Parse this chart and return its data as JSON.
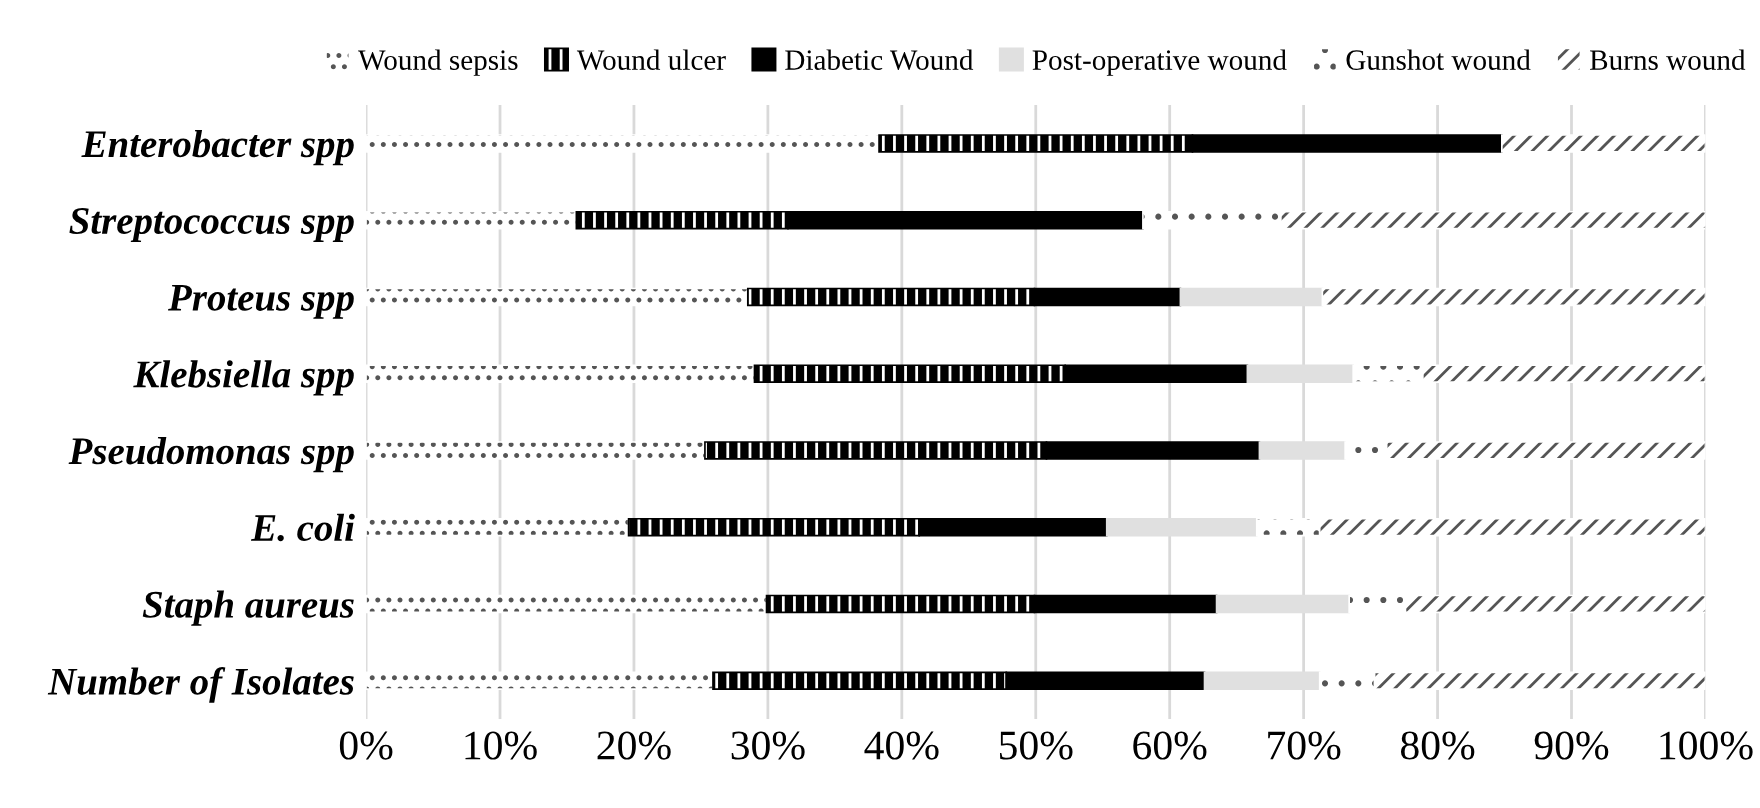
{
  "chart_data": {
    "type": "bar",
    "orientation": "horizontal",
    "stacked": true,
    "categories": [
      "Enterobacter spp",
      "Streptococcus spp",
      "Proteus spp",
      "Klebsiella spp",
      "Pseudomonas spp",
      "E. coli",
      "Staph aureus",
      "Number of Isolates"
    ],
    "series": [
      {
        "name": "Wound sepsis",
        "color": "#ffffff",
        "values": [
          38.3,
          15.7,
          28.5,
          29.0,
          25.3,
          19.6,
          29.9,
          25.9
        ]
      },
      {
        "name": "Wound ulcer",
        "color": "#000000",
        "values": [
          23.4,
          15.8,
          21.4,
          23.2,
          25.5,
          21.7,
          20.0,
          21.9
        ]
      },
      {
        "name": "Diabetic Wound",
        "color": "#000000",
        "values": [
          23.1,
          26.5,
          10.9,
          13.6,
          15.9,
          14.0,
          13.6,
          14.8
        ]
      },
      {
        "name": "Post-operative wound",
        "color": "#e0e0e0",
        "values": [
          null,
          null,
          10.6,
          7.9,
          6.4,
          11.2,
          9.9,
          8.6
        ]
      },
      {
        "name": "Gunshot wound",
        "color": "#ffffff",
        "values": [
          null,
          10.3,
          null,
          5.2,
          3.1,
          4.7,
          4.2,
          4.1
        ]
      },
      {
        "name": "Burns wound",
        "color": "#ffffff",
        "values": [
          15.2,
          31.7,
          28.6,
          21.1,
          23.8,
          28.8,
          22.4,
          24.7
        ]
      }
    ],
    "xlim": [
      0,
      100
    ],
    "xticks": [
      {
        "value": 0,
        "label": "0%"
      },
      {
        "value": 10,
        "label": "10%"
      },
      {
        "value": 20,
        "label": "20%"
      },
      {
        "value": 30,
        "label": "30%"
      },
      {
        "value": 40,
        "label": "40%"
      },
      {
        "value": 50,
        "label": "50%"
      },
      {
        "value": 60,
        "label": "60%"
      },
      {
        "value": 70,
        "label": "70%"
      },
      {
        "value": 80,
        "label": "80%"
      },
      {
        "value": 90,
        "label": "90%"
      },
      {
        "value": 100,
        "label": "100%"
      }
    ],
    "grid": "x",
    "legend": "top"
  }
}
